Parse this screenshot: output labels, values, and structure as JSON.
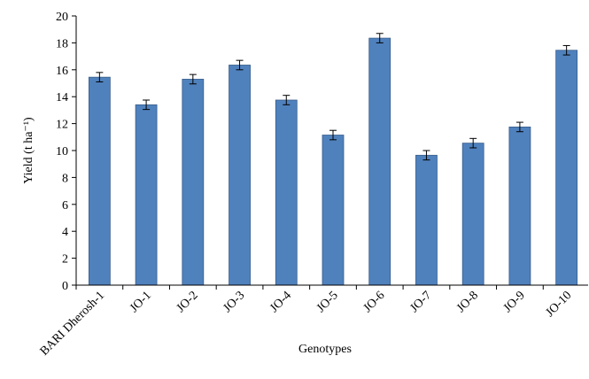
{
  "chart_data": {
    "type": "bar",
    "categories": [
      "BARI Dherosh-1",
      "JO-1",
      "JO-2",
      "JO-3",
      "JO-4",
      "JO-5",
      "JO-6",
      "JO-7",
      "JO-8",
      "JO-9",
      "JO-10"
    ],
    "series": [
      {
        "values": [
          15.45,
          13.4,
          15.3,
          16.35,
          13.75,
          11.15,
          18.35,
          9.65,
          10.55,
          11.75,
          17.45
        ],
        "errors": [
          0.35,
          0.35,
          0.35,
          0.35,
          0.35,
          0.35,
          0.35,
          0.35,
          0.35,
          0.35,
          0.35
        ]
      }
    ],
    "xlabel": "Genotypes",
    "ylabel": "Yield (t ha⁻¹)",
    "ylim": [
      0,
      20
    ],
    "yticks": [
      "0",
      "2",
      "4",
      "6",
      "8",
      "10",
      "12",
      "14",
      "16",
      "18",
      "20"
    ],
    "grid": false,
    "bar_color": "#4f81bd",
    "bar_edge_color": "#385d8a"
  }
}
